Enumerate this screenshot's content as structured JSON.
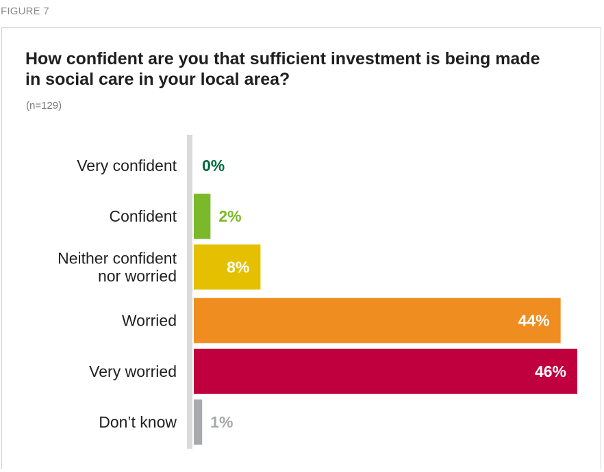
{
  "figure_label": "FIGURE 7",
  "chart_data": {
    "type": "bar",
    "orientation": "horizontal",
    "title": "How confident are you that sufficient investment is being made in social care in your local area?",
    "note": "(n=129)",
    "categories": [
      "Very confident",
      "Confident",
      "Neither confident\nnor worried",
      "Worried",
      "Very worried",
      "Don’t know"
    ],
    "values": [
      0,
      2,
      8,
      44,
      46,
      1
    ],
    "value_labels": [
      "0%",
      "2%",
      "8%",
      "44%",
      "46%",
      "1%"
    ],
    "colors": [
      "#006a3a",
      "#7ab929",
      "#e5c000",
      "#f08d21",
      "#c0003e",
      "#a7a9ac"
    ],
    "label_inside": [
      false,
      false,
      true,
      true,
      true,
      false
    ],
    "xlim": [
      0,
      46
    ],
    "grid": false,
    "legend": "none",
    "axis_color": "#d9dadc"
  }
}
